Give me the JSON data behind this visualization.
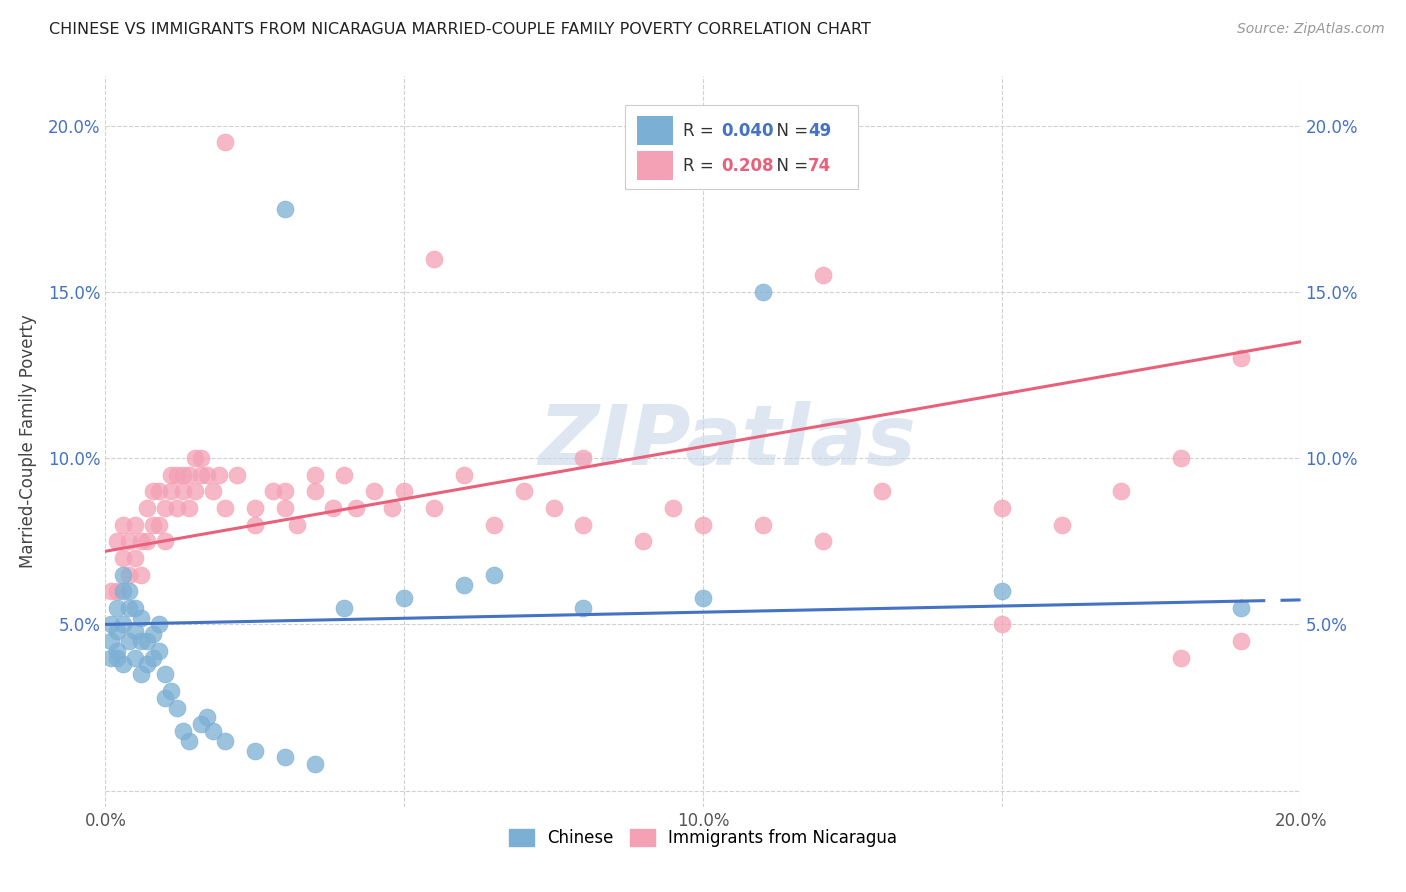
{
  "title": "CHINESE VS IMMIGRANTS FROM NICARAGUA MARRIED-COUPLE FAMILY POVERTY CORRELATION CHART",
  "source": "Source: ZipAtlas.com",
  "ylabel": "Married-Couple Family Poverty",
  "xlim": [
    0.0,
    0.2
  ],
  "ylim": [
    -0.005,
    0.215
  ],
  "xticks": [
    0.0,
    0.05,
    0.1,
    0.15,
    0.2
  ],
  "yticks": [
    0.0,
    0.05,
    0.1,
    0.15,
    0.2
  ],
  "xticklabels": [
    "0.0%",
    "",
    "10.0%",
    "",
    "20.0%"
  ],
  "yticklabels": [
    "",
    "5.0%",
    "10.0%",
    "15.0%",
    "20.0%"
  ],
  "right_yticklabels": [
    "",
    "5.0%",
    "10.0%",
    "15.0%",
    "20.0%"
  ],
  "blue_color": "#7BAFD4",
  "pink_color": "#F4A0B5",
  "blue_line_color": "#4472C4",
  "pink_line_color": "#E8607A",
  "watermark_color": "#C8D8E8",
  "blue_r": 0.04,
  "blue_n": 49,
  "pink_r": 0.208,
  "pink_n": 74,
  "chinese_x": [
    0.001,
    0.001,
    0.001,
    0.002,
    0.002,
    0.002,
    0.002,
    0.003,
    0.003,
    0.003,
    0.003,
    0.004,
    0.004,
    0.004,
    0.005,
    0.005,
    0.005,
    0.006,
    0.006,
    0.006,
    0.007,
    0.007,
    0.008,
    0.008,
    0.009,
    0.009,
    0.01,
    0.01,
    0.011,
    0.012,
    0.013,
    0.014,
    0.016,
    0.017,
    0.018,
    0.02,
    0.025,
    0.03,
    0.035,
    0.04,
    0.05,
    0.06,
    0.065,
    0.08,
    0.1,
    0.11,
    0.15,
    0.19,
    0.03
  ],
  "chinese_y": [
    0.04,
    0.045,
    0.05,
    0.04,
    0.042,
    0.048,
    0.055,
    0.038,
    0.05,
    0.06,
    0.065,
    0.045,
    0.055,
    0.06,
    0.04,
    0.048,
    0.055,
    0.035,
    0.045,
    0.052,
    0.038,
    0.045,
    0.04,
    0.047,
    0.042,
    0.05,
    0.028,
    0.035,
    0.03,
    0.025,
    0.018,
    0.015,
    0.02,
    0.022,
    0.018,
    0.015,
    0.012,
    0.01,
    0.008,
    0.055,
    0.058,
    0.062,
    0.065,
    0.055,
    0.058,
    0.15,
    0.06,
    0.055,
    0.175
  ],
  "nicaragua_x": [
    0.001,
    0.002,
    0.002,
    0.003,
    0.003,
    0.004,
    0.004,
    0.005,
    0.005,
    0.006,
    0.006,
    0.007,
    0.007,
    0.008,
    0.008,
    0.009,
    0.009,
    0.01,
    0.01,
    0.011,
    0.011,
    0.012,
    0.012,
    0.013,
    0.013,
    0.014,
    0.014,
    0.015,
    0.015,
    0.016,
    0.016,
    0.017,
    0.018,
    0.019,
    0.02,
    0.022,
    0.025,
    0.025,
    0.028,
    0.03,
    0.03,
    0.032,
    0.035,
    0.035,
    0.038,
    0.04,
    0.042,
    0.045,
    0.048,
    0.05,
    0.055,
    0.06,
    0.065,
    0.07,
    0.075,
    0.08,
    0.09,
    0.095,
    0.1,
    0.11,
    0.12,
    0.13,
    0.15,
    0.16,
    0.17,
    0.18,
    0.19,
    0.02,
    0.055,
    0.08,
    0.12,
    0.15,
    0.18,
    0.19
  ],
  "nicaragua_y": [
    0.06,
    0.06,
    0.075,
    0.07,
    0.08,
    0.065,
    0.075,
    0.07,
    0.08,
    0.065,
    0.075,
    0.075,
    0.085,
    0.08,
    0.09,
    0.08,
    0.09,
    0.075,
    0.085,
    0.09,
    0.095,
    0.085,
    0.095,
    0.09,
    0.095,
    0.085,
    0.095,
    0.09,
    0.1,
    0.095,
    0.1,
    0.095,
    0.09,
    0.095,
    0.085,
    0.095,
    0.085,
    0.08,
    0.09,
    0.085,
    0.09,
    0.08,
    0.095,
    0.09,
    0.085,
    0.095,
    0.085,
    0.09,
    0.085,
    0.09,
    0.085,
    0.095,
    0.08,
    0.09,
    0.085,
    0.08,
    0.075,
    0.085,
    0.08,
    0.08,
    0.075,
    0.09,
    0.085,
    0.08,
    0.09,
    0.1,
    0.13,
    0.195,
    0.16,
    0.1,
    0.155,
    0.05,
    0.04,
    0.045
  ]
}
